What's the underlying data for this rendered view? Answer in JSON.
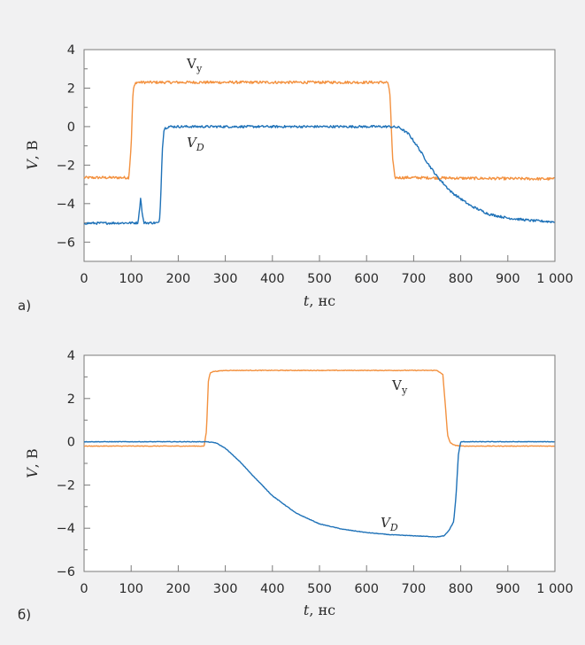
{
  "colors": {
    "background": "#f1f1f2",
    "frame": "#7a7a7a",
    "vy": "#f3913f",
    "vd": "#1f72b8"
  },
  "chart_data": [
    {
      "type": "line",
      "panel_label": "а)",
      "xlabel_var": "t",
      "xlabel_unit": ", нс",
      "ylabel_var": "V",
      "ylabel_unit": ", В",
      "xlim": [
        0,
        1000
      ],
      "ylim": [
        -7,
        4
      ],
      "x_ticks": [
        0,
        100,
        200,
        300,
        400,
        500,
        600,
        700,
        800,
        900,
        1000
      ],
      "x_tick_labels": [
        "0",
        "100",
        "200",
        "300",
        "400",
        "500",
        "600",
        "700",
        "800",
        "900",
        "1 000"
      ],
      "y_ticks": [
        -6,
        -4,
        -2,
        0,
        2,
        4
      ],
      "y_tick_labels": [
        "−6",
        "−4",
        "−2",
        "0",
        "2",
        "4"
      ],
      "grid": false,
      "series": [
        {
          "name": "Vу",
          "label_main": "V",
          "label_sub": "у",
          "color_key": "vy",
          "noise": 0.07,
          "x": [
            0,
            95,
            100,
            104,
            110,
            150,
            300,
            500,
            645,
            650,
            655,
            660,
            700,
            800,
            900,
            1000
          ],
          "y": [
            -2.65,
            -2.65,
            -1.0,
            1.9,
            2.3,
            2.3,
            2.3,
            2.3,
            2.3,
            1.6,
            -1.6,
            -2.65,
            -2.65,
            -2.68,
            -2.7,
            -2.72
          ]
        },
        {
          "name": "VD",
          "label_main": "V",
          "label_sub": "D",
          "color_key": "vd",
          "noise": 0.06,
          "x": [
            0,
            114,
            117,
            120,
            124,
            127,
            160,
            163,
            166,
            170,
            180,
            300,
            500,
            650,
            670,
            690,
            710,
            730,
            750,
            780,
            820,
            860,
            900,
            950,
            1000
          ],
          "y": [
            -5.02,
            -5.0,
            -4.5,
            -3.7,
            -4.6,
            -5.0,
            -5.0,
            -3.6,
            -1.2,
            -0.1,
            0.0,
            0.0,
            0.0,
            0.0,
            -0.05,
            -0.4,
            -1.1,
            -1.9,
            -2.6,
            -3.4,
            -4.1,
            -4.55,
            -4.75,
            -4.88,
            -4.95
          ]
        }
      ]
    },
    {
      "type": "line",
      "panel_label": "б)",
      "xlabel_var": "t",
      "xlabel_unit": ", нс",
      "ylabel_var": "V",
      "ylabel_unit": ", В",
      "xlim": [
        0,
        1000
      ],
      "ylim": [
        -6,
        4
      ],
      "x_ticks": [
        0,
        100,
        200,
        300,
        400,
        500,
        600,
        700,
        800,
        900,
        1000
      ],
      "x_tick_labels": [
        "0",
        "100",
        "200",
        "300",
        "400",
        "500",
        "600",
        "700",
        "800",
        "900",
        "1 000"
      ],
      "y_ticks": [
        -6,
        -4,
        -2,
        0,
        2,
        4
      ],
      "y_tick_labels": [
        "−6",
        "−4",
        "−2",
        "0",
        "2",
        "4"
      ],
      "grid": false,
      "series": [
        {
          "name": "Vу",
          "label_main": "V",
          "label_sub": "у",
          "color_key": "vy",
          "noise": 0.015,
          "x": [
            0,
            255,
            260,
            264,
            268,
            275,
            300,
            500,
            750,
            762,
            768,
            772,
            778,
            785,
            800,
            1000
          ],
          "y": [
            -0.2,
            -0.2,
            0.5,
            2.8,
            3.2,
            3.25,
            3.3,
            3.3,
            3.3,
            3.1,
            1.5,
            0.3,
            -0.05,
            -0.15,
            -0.2,
            -0.2
          ]
        },
        {
          "name": "VD",
          "label_main": "V",
          "label_sub": "D",
          "color_key": "vd",
          "noise": 0.012,
          "x": [
            0,
            260,
            280,
            300,
            330,
            360,
            400,
            450,
            500,
            550,
            600,
            650,
            700,
            750,
            765,
            775,
            785,
            790,
            795,
            800,
            1000
          ],
          "y": [
            0.0,
            0.0,
            -0.05,
            -0.3,
            -0.9,
            -1.6,
            -2.5,
            -3.3,
            -3.8,
            -4.05,
            -4.2,
            -4.3,
            -4.35,
            -4.4,
            -4.35,
            -4.1,
            -3.7,
            -2.5,
            -0.6,
            0.0,
            0.0
          ]
        }
      ]
    }
  ]
}
